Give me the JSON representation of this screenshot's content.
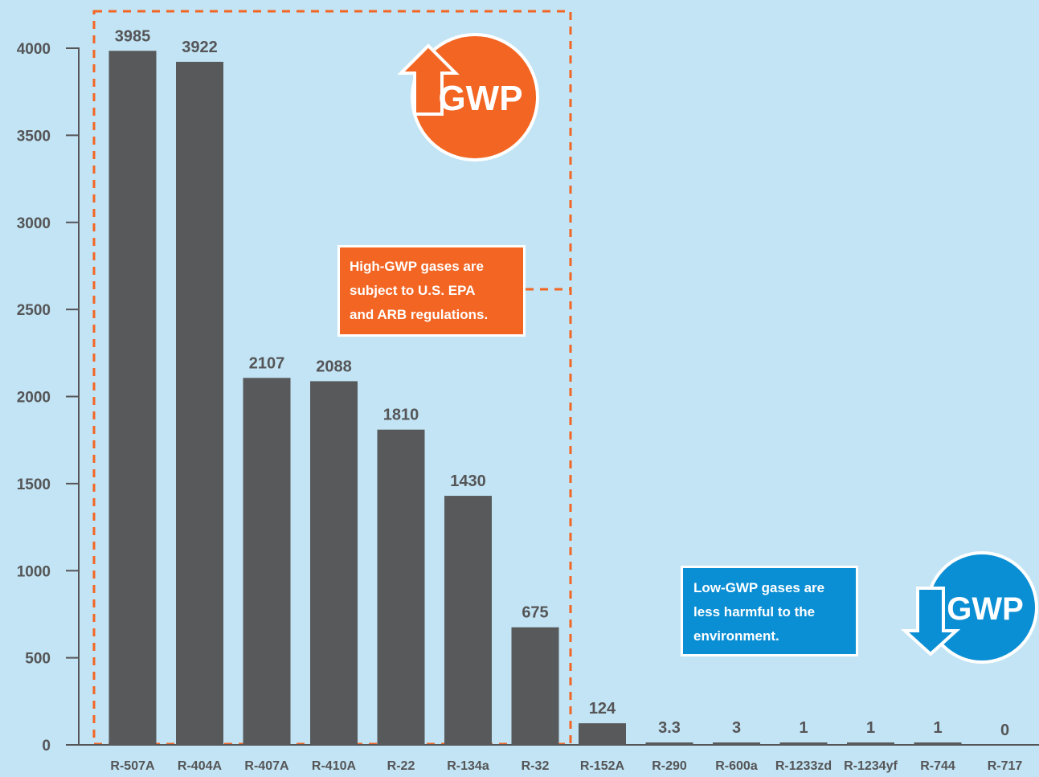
{
  "chart_data": {
    "type": "bar",
    "categories": [
      "R-507A",
      "R-404A",
      "R-407A",
      "R-410A",
      "R-22",
      "R-134a",
      "R-32",
      "R-152A",
      "R-290",
      "R-600a",
      "R-1233zd",
      "R-1234yf",
      "R-744",
      "R-717"
    ],
    "values": [
      3985,
      3922,
      2107,
      2088,
      1810,
      1430,
      675,
      124,
      3.3,
      3,
      1,
      1,
      1,
      0
    ],
    "value_labels": [
      "3985",
      "3922",
      "2107",
      "2088",
      "1810",
      "1430",
      "675",
      "124",
      "3.3",
      "3",
      "1",
      "1",
      "1",
      "0"
    ],
    "yticks": [
      "0",
      "500",
      "1000",
      "1500",
      "2000",
      "2500",
      "3000",
      "3500",
      "4000"
    ],
    "ylim": [
      0,
      4000
    ],
    "title": "",
    "xlabel": "",
    "ylabel": "",
    "grid": false,
    "bar_color": "#58595b",
    "background_color": "#c2e4f4"
  },
  "annotations": {
    "high": {
      "lines": [
        "High-GWP gases are",
        "subject to U.S. EPA",
        "and ARB regulations."
      ],
      "badge_text": "GWP",
      "color": "#f26522",
      "icon": "arrow-up-icon"
    },
    "low": {
      "lines": [
        "Low-GWP gases are",
        "less harmful to the",
        "environment."
      ],
      "badge_text": "GWP",
      "color": "#0b8fd4",
      "icon": "arrow-down-icon"
    }
  }
}
